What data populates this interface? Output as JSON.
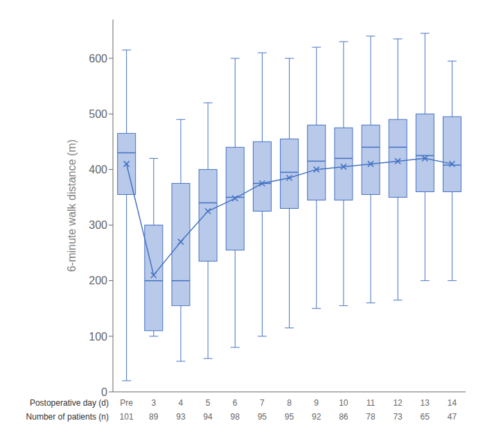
{
  "chart_data": {
    "type": "box",
    "ylabel": "6-minute walk distance (m)",
    "xlabel_row1": "Postoperative day (d)",
    "xlabel_row2": "Number of patients (n)",
    "categories": [
      "Pre",
      "3",
      "4",
      "5",
      "6",
      "7",
      "8",
      "9",
      "10",
      "11",
      "12",
      "13",
      "14"
    ],
    "n_patients": [
      101,
      89,
      93,
      94,
      98,
      95,
      95,
      92,
      86,
      78,
      73,
      65,
      47
    ],
    "series": [
      {
        "type": "box",
        "color": "#4472c4",
        "whislo": [
          20,
          100,
          55,
          60,
          80,
          100,
          115,
          150,
          155,
          160,
          165,
          200,
          200
        ],
        "q1": [
          355,
          110,
          155,
          235,
          255,
          325,
          330,
          345,
          345,
          355,
          350,
          360,
          360
        ],
        "med": [
          430,
          200,
          200,
          340,
          350,
          375,
          395,
          415,
          420,
          440,
          440,
          425,
          408
        ],
        "q3": [
          465,
          300,
          375,
          400,
          440,
          450,
          455,
          480,
          475,
          480,
          490,
          500,
          495
        ],
        "whishi": [
          615,
          420,
          490,
          520,
          600,
          610,
          600,
          620,
          630,
          640,
          635,
          645,
          595
        ]
      },
      {
        "type": "line",
        "color": "#4472c4",
        "marker": "x",
        "values": [
          410,
          210,
          270,
          325,
          348,
          375,
          385,
          400,
          405,
          410,
          415,
          420,
          410
        ]
      }
    ],
    "ylim": [
      0,
      670
    ],
    "yticks": [
      0,
      100,
      200,
      300,
      400,
      500,
      600
    ]
  }
}
